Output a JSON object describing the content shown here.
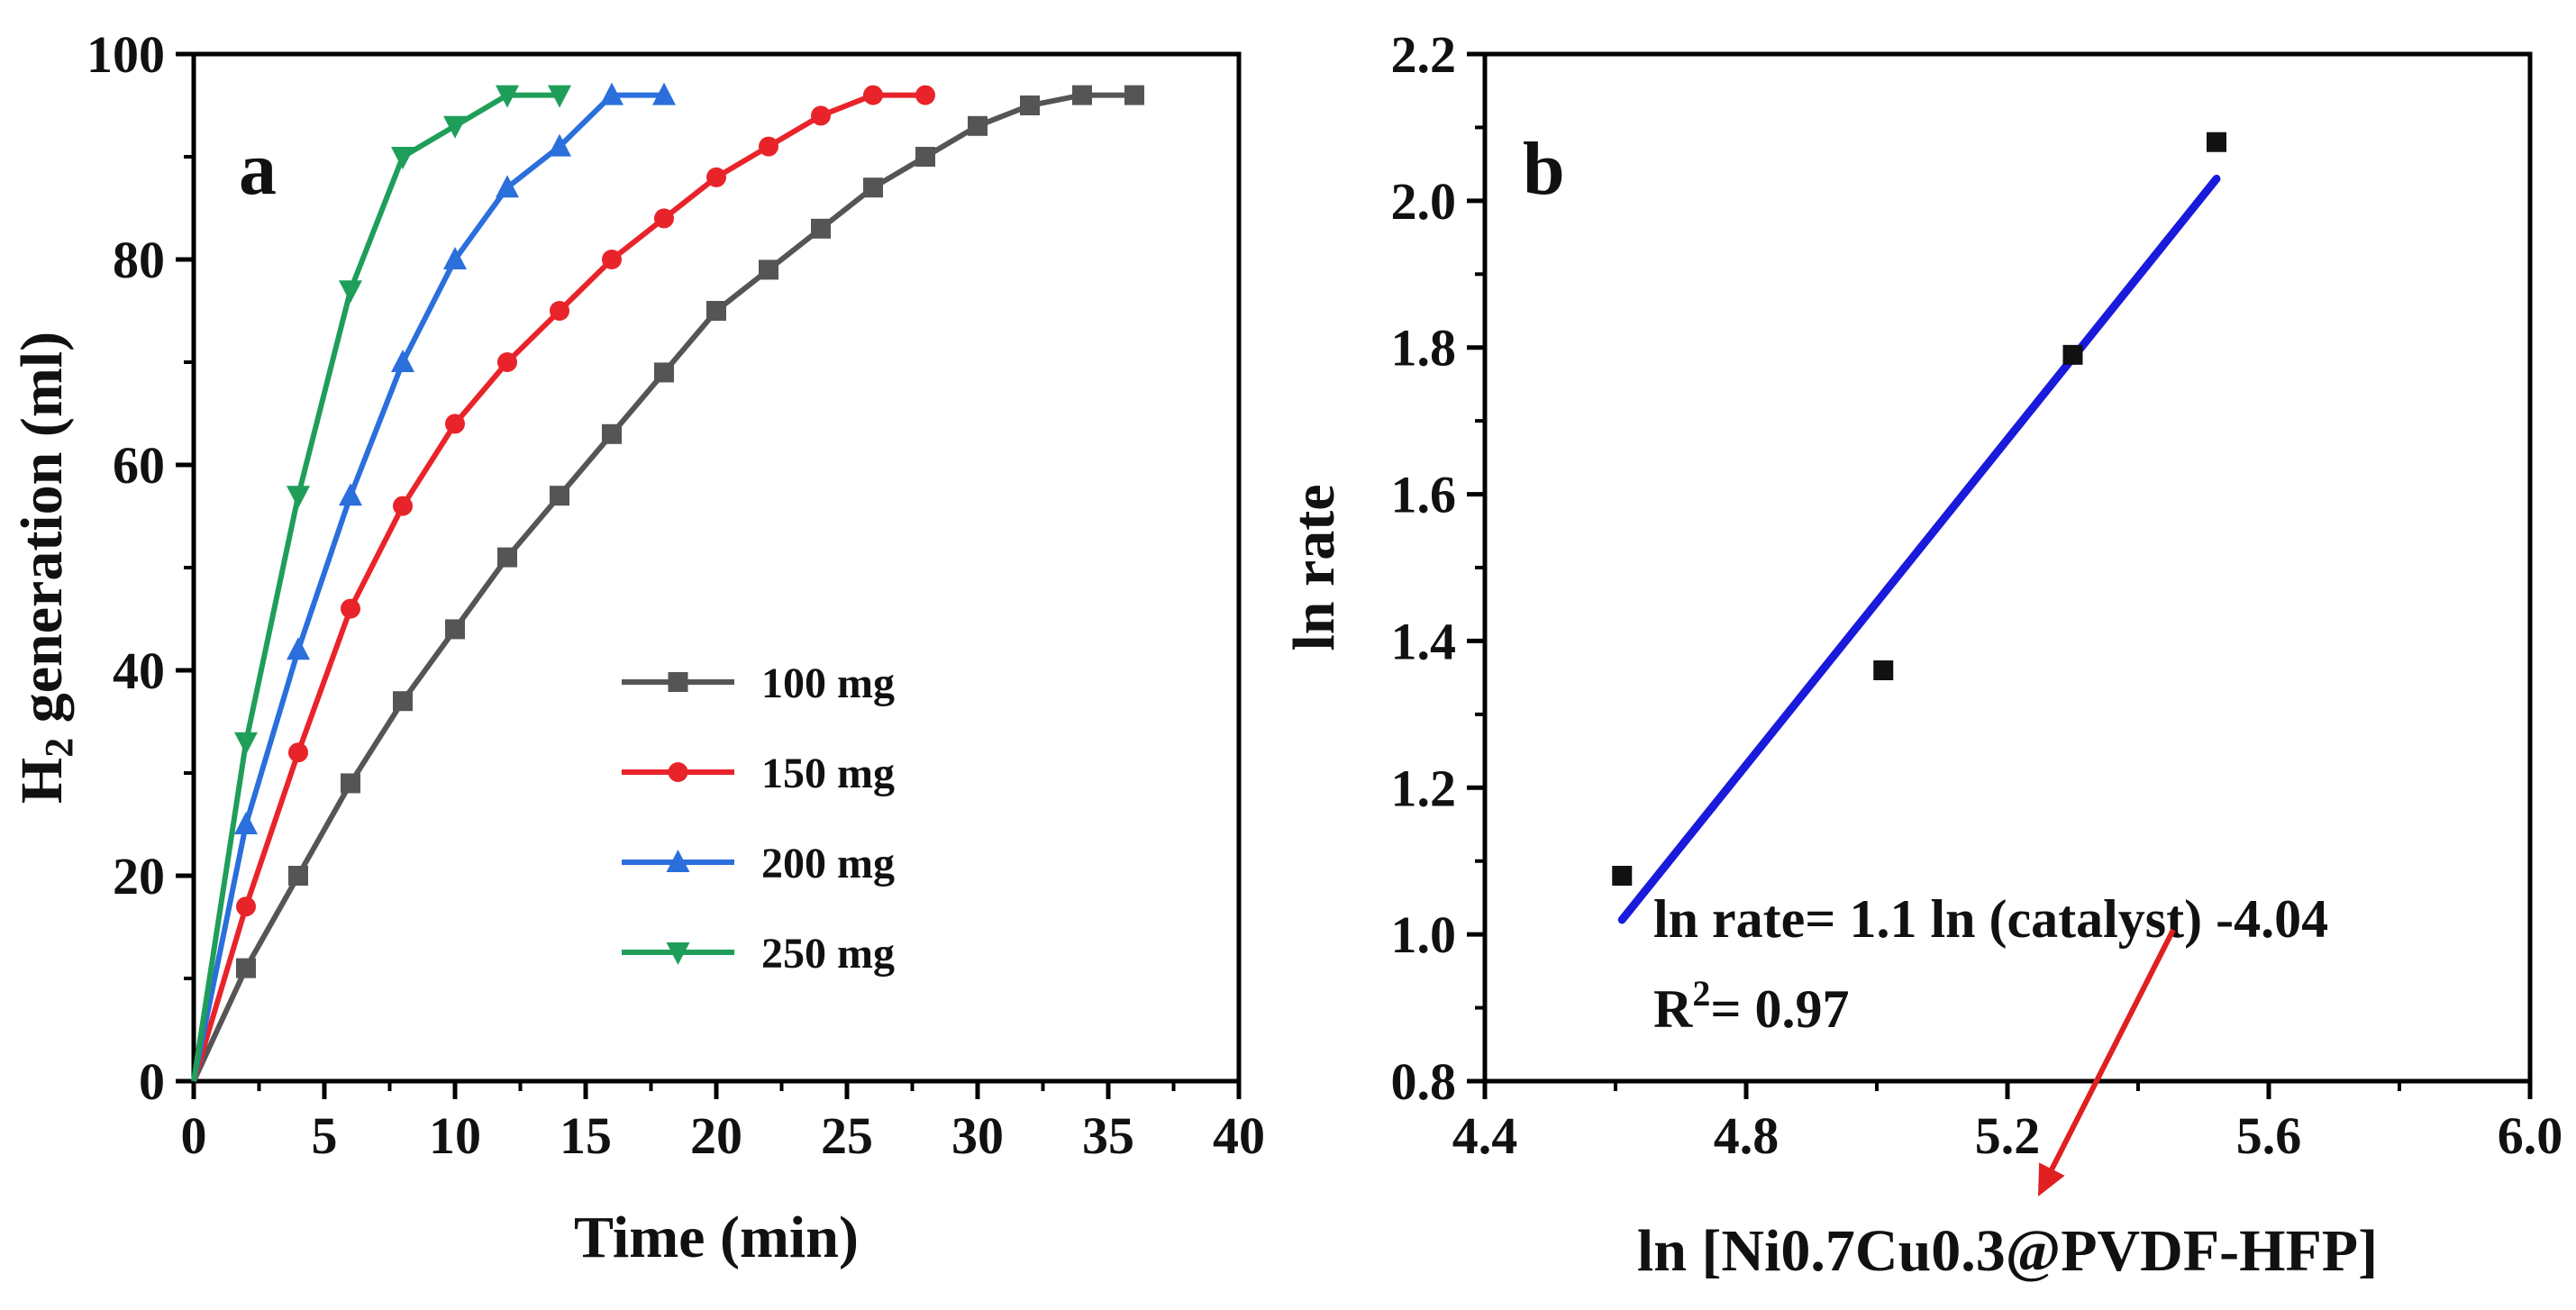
{
  "chart_data": [
    {
      "panel": "a",
      "type": "line",
      "xlabel": "Time (min)",
      "ylabel_main": "H",
      "ylabel_sub": "2",
      "ylabel_rest": " generation (ml)",
      "xlim": [
        0,
        40
      ],
      "ylim": [
        0,
        100
      ],
      "xticks": [
        "0",
        "5",
        "10",
        "15",
        "20",
        "25",
        "30",
        "35",
        "40"
      ],
      "yticks": [
        "0",
        "20",
        "40",
        "60",
        "80",
        "100"
      ],
      "series": [
        {
          "name": "100 mg",
          "color": "#555555",
          "marker": "square",
          "x": [
            0,
            2,
            4,
            6,
            8,
            10,
            12,
            14,
            16,
            18,
            20,
            22,
            24,
            26,
            28,
            30,
            32,
            34,
            36
          ],
          "y": [
            0,
            11,
            20,
            29,
            37,
            44,
            51,
            57,
            63,
            69,
            75,
            79,
            83,
            87,
            90,
            93,
            95,
            96,
            96
          ]
        },
        {
          "name": "150 mg",
          "color": "#e8242a",
          "marker": "circle",
          "x": [
            0,
            2,
            4,
            6,
            8,
            10,
            12,
            14,
            16,
            18,
            20,
            22,
            24,
            26,
            28
          ],
          "y": [
            0,
            17,
            32,
            46,
            56,
            64,
            70,
            75,
            80,
            84,
            88,
            91,
            94,
            96,
            96
          ]
        },
        {
          "name": "200 mg",
          "color": "#2a6fdb",
          "marker": "triangle-up",
          "x": [
            0,
            2,
            4,
            6,
            8,
            10,
            12,
            14,
            16,
            18
          ],
          "y": [
            0,
            25,
            42,
            57,
            70,
            80,
            87,
            91,
            96,
            96
          ]
        },
        {
          "name": "250 mg",
          "color": "#1f9e5a",
          "marker": "triangle-down",
          "x": [
            0,
            2,
            4,
            6,
            8,
            10,
            12,
            14
          ],
          "y": [
            0,
            33,
            57,
            77,
            90,
            93,
            96,
            96
          ]
        }
      ]
    },
    {
      "panel": "b",
      "type": "scatter",
      "xlabel": "ln [Ni0.7Cu0.3@PVDF-HFP]",
      "ylabel": "ln rate",
      "xlim": [
        4.4,
        6.0
      ],
      "ylim": [
        0.8,
        2.2
      ],
      "xticks": [
        "4.4",
        "4.8",
        "5.2",
        "5.6",
        "6.0"
      ],
      "yticks": [
        "0.8",
        "1.0",
        "1.2",
        "1.4",
        "1.6",
        "1.8",
        "2.0",
        "2.2"
      ],
      "points": {
        "x": [
          4.61,
          5.01,
          5.3,
          5.52
        ],
        "y": [
          1.08,
          1.36,
          1.79,
          2.08
        ],
        "color": "#111111"
      },
      "fit": {
        "x": [
          4.61,
          5.52
        ],
        "y": [
          1.02,
          2.03
        ],
        "color": "#1a1adc"
      },
      "equation": "ln rate= 1.1 ln (catalyst) -4.04",
      "r2_label": "R",
      "r2_sup": "2",
      "r2_value": "= 0.97",
      "arrow_color": "#e02020"
    }
  ]
}
